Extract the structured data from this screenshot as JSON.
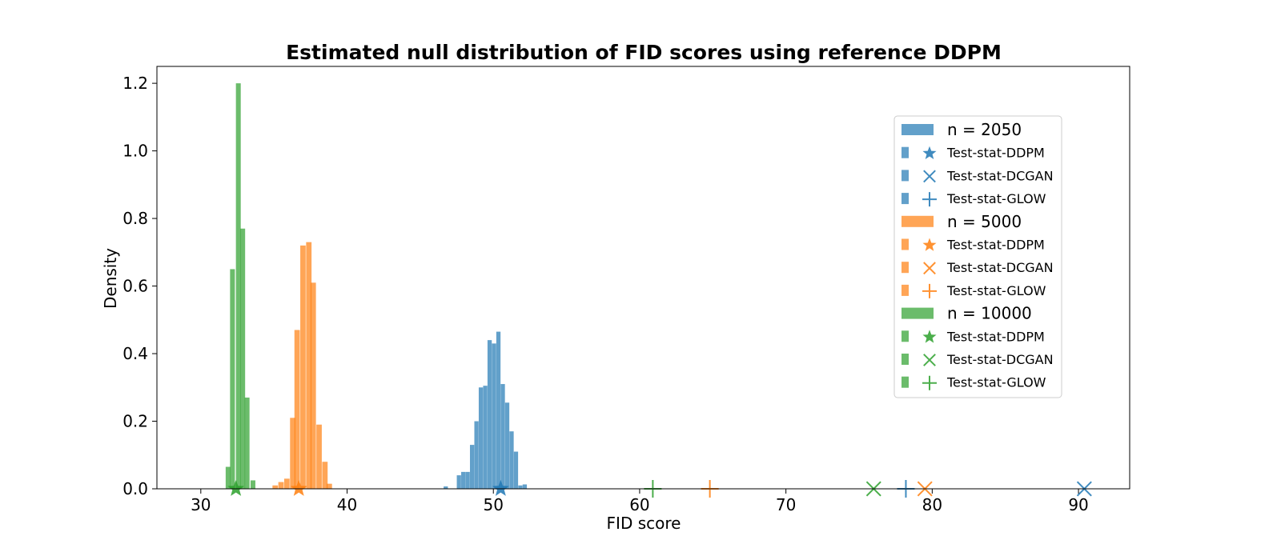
{
  "chart_data": {
    "type": "histogram",
    "title": "Estimated null distribution of FID scores using reference DDPM",
    "xlabel": "FID score",
    "ylabel": "Density",
    "xlim": [
      27,
      93.5
    ],
    "ylim": [
      0,
      1.25
    ],
    "xticks": [
      30,
      40,
      50,
      60,
      70,
      80,
      90
    ],
    "yticks": [
      0.0,
      0.2,
      0.4,
      0.6,
      0.8,
      1.0,
      1.2
    ],
    "grid": false,
    "legend_position": "upper-right",
    "series": [
      {
        "name": "n = 2050",
        "color": "#1f77b4",
        "bin_width": 0.29,
        "bin_starts": [
          46.6,
          47.5,
          47.8,
          48.1,
          48.4,
          48.7,
          49.0,
          49.3,
          49.6,
          49.9,
          50.2,
          50.5,
          50.8,
          51.1,
          51.4,
          51.7,
          52.0
        ],
        "densities": [
          0.007,
          0.04,
          0.05,
          0.05,
          0.13,
          0.2,
          0.3,
          0.305,
          0.44,
          0.43,
          0.465,
          0.31,
          0.255,
          0.17,
          0.11,
          0.01,
          0.013
        ],
        "test_stats": [
          {
            "name": "Test-stat-DDPM",
            "marker": "star",
            "x": 50.5
          },
          {
            "name": "Test-stat-DCGAN",
            "marker": "x",
            "x": 90.4
          },
          {
            "name": "Test-stat-GLOW",
            "marker": "plus",
            "x": 78.2
          }
        ]
      },
      {
        "name": "n = 5000",
        "color": "#ff7f0e",
        "bin_width": 0.37,
        "bin_starts": [
          35.3,
          35.7,
          36.1,
          36.4,
          36.8,
          37.2,
          37.5,
          37.9,
          38.3
        ],
        "densities": [
          0.01,
          0.02,
          0.03,
          0.21,
          0.47,
          0.72,
          0.73,
          0.61,
          0.19,
          0.08,
          0.015
        ],
        "bin_starts_full": [
          34.9,
          35.3,
          35.7,
          36.1,
          36.4,
          36.8,
          37.2,
          37.5,
          37.9,
          38.3,
          38.6
        ],
        "test_stats": [
          {
            "name": "Test-stat-DDPM",
            "marker": "star",
            "x": 36.7
          },
          {
            "name": "Test-stat-DCGAN",
            "marker": "x",
            "x": 79.5
          },
          {
            "name": "Test-stat-GLOW",
            "marker": "plus",
            "x": 64.8
          }
        ]
      },
      {
        "name": "n = 10000",
        "color": "#2ca02c",
        "bin_width": 0.33,
        "bin_starts_full": [
          31.7,
          32.0,
          32.4,
          32.7,
          33.0,
          33.4
        ],
        "densities": [
          0.065,
          0.65,
          1.2,
          0.77,
          0.27,
          0.025
        ],
        "test_stats": [
          {
            "name": "Test-stat-DDPM",
            "marker": "star",
            "x": 32.4
          },
          {
            "name": "Test-stat-DCGAN",
            "marker": "x",
            "x": 76.0
          },
          {
            "name": "Test-stat-GLOW",
            "marker": "plus",
            "x": 60.9
          }
        ]
      }
    ],
    "legend_entries": [
      {
        "label": "n = 2050",
        "kind": "hist",
        "color": "#1f77b4"
      },
      {
        "label": "Test-stat-DDPM",
        "kind": "star",
        "color": "#1f77b4"
      },
      {
        "label": "Test-stat-DCGAN",
        "kind": "x",
        "color": "#1f77b4"
      },
      {
        "label": "Test-stat-GLOW",
        "kind": "plus",
        "color": "#1f77b4"
      },
      {
        "label": "n = 5000",
        "kind": "hist",
        "color": "#ff7f0e"
      },
      {
        "label": "Test-stat-DDPM",
        "kind": "star",
        "color": "#ff7f0e"
      },
      {
        "label": "Test-stat-DCGAN",
        "kind": "x",
        "color": "#ff7f0e"
      },
      {
        "label": "Test-stat-GLOW",
        "kind": "plus",
        "color": "#ff7f0e"
      },
      {
        "label": "n = 10000",
        "kind": "hist",
        "color": "#2ca02c"
      },
      {
        "label": "Test-stat-DDPM",
        "kind": "star",
        "color": "#2ca02c"
      },
      {
        "label": "Test-stat-DCGAN",
        "kind": "x",
        "color": "#2ca02c"
      },
      {
        "label": "Test-stat-GLOW",
        "kind": "plus",
        "color": "#2ca02c"
      }
    ]
  }
}
